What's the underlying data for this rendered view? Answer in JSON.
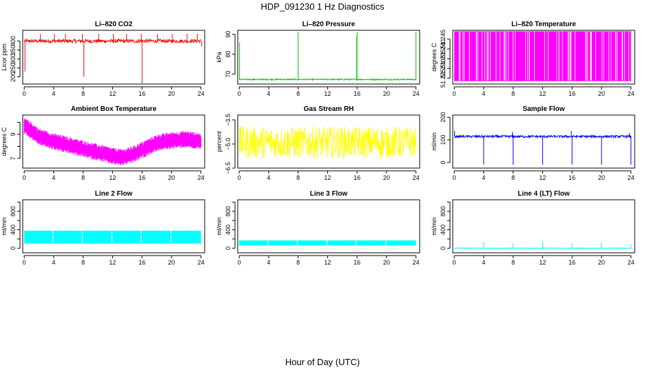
{
  "figure": {
    "title": "HDP_091230  1 Hz Diagnostics",
    "xlabel": "Hour of Day (UTC)"
  },
  "chart_data": [
    {
      "id": "co2",
      "type": "line",
      "title": "Li–820 CO2",
      "ylabel": "Licor ppm",
      "color": "#ff0000",
      "xlim": [
        -0.2,
        24.5
      ],
      "ylim": [
        160,
        460
      ],
      "yticks": [
        200,
        250,
        300,
        350,
        400
      ],
      "yticklabels": [
        "200",
        "250",
        "300",
        "350",
        "400"
      ],
      "xticks": [
        0,
        4,
        8,
        12,
        16,
        20,
        24
      ],
      "series": [
        {
          "kind": "noise",
          "x0": 0,
          "x1": 24,
          "base": 400,
          "amp": 10
        }
      ],
      "spikes": [
        {
          "x": 0.1,
          "y0": 400,
          "y1": 230
        },
        {
          "x": 2.2,
          "y0": 400,
          "y1": 440
        },
        {
          "x": 4.1,
          "y0": 400,
          "y1": 440
        },
        {
          "x": 5.6,
          "y0": 400,
          "y1": 440
        },
        {
          "x": 7.9,
          "y0": 400,
          "y1": 440
        },
        {
          "x": 8.1,
          "y0": 400,
          "y1": 200
        },
        {
          "x": 10.1,
          "y0": 400,
          "y1": 440
        },
        {
          "x": 12.1,
          "y0": 400,
          "y1": 440
        },
        {
          "x": 13.9,
          "y0": 400,
          "y1": 440
        },
        {
          "x": 16.0,
          "y0": 400,
          "y1": 160
        },
        {
          "x": 15.9,
          "y0": 400,
          "y1": 440
        },
        {
          "x": 18.1,
          "y0": 400,
          "y1": 440
        },
        {
          "x": 20.1,
          "y0": 400,
          "y1": 440
        },
        {
          "x": 22.1,
          "y0": 400,
          "y1": 440
        },
        {
          "x": 23.5,
          "y0": 400,
          "y1": 440
        },
        {
          "x": 24.1,
          "y0": 400,
          "y1": 370
        }
      ]
    },
    {
      "id": "pressure",
      "type": "line",
      "title": "Li–820 Pressure",
      "ylabel": "kPa",
      "color": "#00c000",
      "xlim": [
        -0.2,
        24.5
      ],
      "ylim": [
        65,
        92
      ],
      "yticks": [
        70,
        80,
        90
      ],
      "yticklabels": [
        "70",
        "80",
        "90"
      ],
      "xticks": [
        0,
        4,
        8,
        12,
        16,
        20,
        24
      ],
      "series": [
        {
          "kind": "noise",
          "x0": 0,
          "x1": 24,
          "base": 67.3,
          "amp": 0.3
        }
      ],
      "spikes": [
        {
          "x": 0.05,
          "y0": 67,
          "y1": 86
        },
        {
          "x": 8.0,
          "y0": 67,
          "y1": 91
        },
        {
          "x": 16.0,
          "y0": 67,
          "y1": 91
        },
        {
          "x": 15.95,
          "y0": 67,
          "y1": 89
        },
        {
          "x": 24.0,
          "y0": 67,
          "y1": 91
        }
      ]
    },
    {
      "id": "licor-temp",
      "type": "line",
      "title": "Li–820 Temperature",
      "ylabel": "degrees C",
      "color": "#ff00ff",
      "xlim": [
        -0.2,
        24.5
      ],
      "ylim": [
        51.222,
        51.2495
      ],
      "yticks": [
        51.225,
        51.23,
        51.235,
        51.24,
        51.245
      ],
      "yticklabels": [
        "51.225",
        "51.230",
        "51.235",
        "51.240",
        "51.245"
      ],
      "xticks": [
        0,
        4,
        8,
        12,
        16,
        20,
        24
      ],
      "series": [
        {
          "kind": "block",
          "x0": 0,
          "x1": 24,
          "lo": 51.2235,
          "hi": 51.249
        }
      ],
      "spikes": []
    },
    {
      "id": "box-temp",
      "type": "line",
      "title": "Ambient Box Temperature",
      "ylabel": "degrees C",
      "color": "#ff00ff",
      "xlim": [
        -0.2,
        24.5
      ],
      "ylim": [
        6.2,
        10.6
      ],
      "yticks": [
        7,
        8,
        9,
        10
      ],
      "yticklabels": [
        "7",
        "",
        "9",
        ""
      ],
      "xticks": [
        0,
        4,
        8,
        12,
        16,
        20,
        24
      ],
      "series": [
        {
          "kind": "band",
          "x": [
            0,
            1,
            2,
            4,
            6,
            8,
            10,
            12,
            13,
            14,
            15,
            16,
            17,
            18,
            20,
            22,
            24
          ],
          "center": [
            9.7,
            9.3,
            8.8,
            8.4,
            8.1,
            7.8,
            7.5,
            7.2,
            7.1,
            7.2,
            7.4,
            7.7,
            8.0,
            8.3,
            8.5,
            8.6,
            8.4
          ],
          "amp": 0.7
        }
      ],
      "spikes": []
    },
    {
      "id": "rh",
      "type": "line",
      "title": "Gas Stream RH",
      "ylabel": "percent",
      "color": "#ffff00",
      "xlim": [
        -0.2,
        24.5
      ],
      "ylim": [
        -6.5,
        -3.2
      ],
      "yticks": [
        -6.5,
        -5.0,
        -3.5
      ],
      "yticklabels": [
        "−6.5",
        "−5.0",
        "−3.5"
      ],
      "xticks": [
        0,
        4,
        8,
        12,
        16,
        20,
        24
      ],
      "series": [
        {
          "kind": "noise",
          "x0": 0,
          "x1": 24,
          "base": -4.9,
          "amp": 1.0
        }
      ],
      "spikes": []
    },
    {
      "id": "sample-flow",
      "type": "line",
      "title": "Sample Flow",
      "ylabel": "ml/min",
      "color": "#0000ff",
      "xlim": [
        -0.2,
        24.5
      ],
      "ylim": [
        -25,
        210
      ],
      "yticks": [
        0,
        100,
        200
      ],
      "yticklabels": [
        "0",
        "100",
        "200"
      ],
      "xticks": [
        0,
        4,
        8,
        12,
        16,
        20,
        24
      ],
      "series": [
        {
          "kind": "noise",
          "x0": 0,
          "x1": 24,
          "base": 115,
          "amp": 5
        }
      ],
      "spikes": [
        {
          "x": 0.05,
          "y0": 115,
          "y1": 140
        },
        {
          "x": 4.0,
          "y0": 115,
          "y1": -10
        },
        {
          "x": 8.0,
          "y0": 115,
          "y1": -10
        },
        {
          "x": 7.9,
          "y0": 115,
          "y1": 135
        },
        {
          "x": 12.0,
          "y0": 115,
          "y1": -10
        },
        {
          "x": 16.0,
          "y0": 115,
          "y1": -10
        },
        {
          "x": 15.9,
          "y0": 115,
          "y1": 140
        },
        {
          "x": 20.0,
          "y0": 115,
          "y1": -10
        },
        {
          "x": 24.0,
          "y0": 115,
          "y1": -10
        },
        {
          "x": 23.8,
          "y0": 115,
          "y1": 130
        }
      ]
    },
    {
      "id": "line2",
      "type": "line",
      "title": "Line 2 Flow",
      "ylabel": "ml/min",
      "color": "#00ffff",
      "xlim": [
        -0.2,
        24.5
      ],
      "ylim": [
        -100,
        1050
      ],
      "yticks": [
        0,
        200,
        400,
        600,
        800,
        1000
      ],
      "yticklabels": [
        "0",
        "",
        "400",
        "",
        "800",
        ""
      ],
      "xticks": [
        0,
        4,
        8,
        12,
        16,
        20,
        24
      ],
      "series": [
        {
          "kind": "block",
          "x0": 0,
          "x1": 24,
          "lo": 100,
          "hi": 380
        }
      ],
      "gaps": [
        3.9,
        7.9,
        11.9,
        15.9,
        19.9
      ]
    },
    {
      "id": "line3",
      "type": "line",
      "title": "Line 3 Flow",
      "ylabel": "ml/min",
      "color": "#00ffff",
      "xlim": [
        -0.2,
        24.5
      ],
      "ylim": [
        -100,
        1050
      ],
      "yticks": [
        0,
        200,
        400,
        600,
        800,
        1000
      ],
      "yticklabels": [
        "0",
        "",
        "400",
        "",
        "800",
        ""
      ],
      "xticks": [
        0,
        4,
        8,
        12,
        16,
        20,
        24
      ],
      "series": [
        {
          "kind": "block",
          "x0": 0,
          "x1": 24,
          "lo": 60,
          "hi": 170
        }
      ],
      "gaps": [
        3.9,
        7.9,
        11.9,
        15.9,
        19.9
      ]
    },
    {
      "id": "line4",
      "type": "line",
      "title": "Line 4 (LT) Flow",
      "ylabel": "ml/min",
      "color": "#00ffff",
      "xlim": [
        -0.2,
        24.5
      ],
      "ylim": [
        -100,
        1050
      ],
      "yticks": [
        0,
        200,
        400,
        600,
        800,
        1000
      ],
      "yticklabels": [
        "0",
        "",
        "400",
        "",
        "800",
        ""
      ],
      "xticks": [
        0,
        4,
        8,
        12,
        16,
        20,
        24
      ],
      "series": [
        {
          "kind": "noise",
          "x0": 0,
          "x1": 24,
          "base": 0,
          "amp": 8
        }
      ],
      "spikes": [
        {
          "x": 4.0,
          "y0": 0,
          "y1": 140
        },
        {
          "x": 8.0,
          "y0": 0,
          "y1": 110
        },
        {
          "x": 12.0,
          "y0": 0,
          "y1": 150
        },
        {
          "x": 16.0,
          "y0": 0,
          "y1": 110
        },
        {
          "x": 20.0,
          "y0": 0,
          "y1": 130
        },
        {
          "x": 24.0,
          "y0": 0,
          "y1": 90
        }
      ]
    }
  ]
}
